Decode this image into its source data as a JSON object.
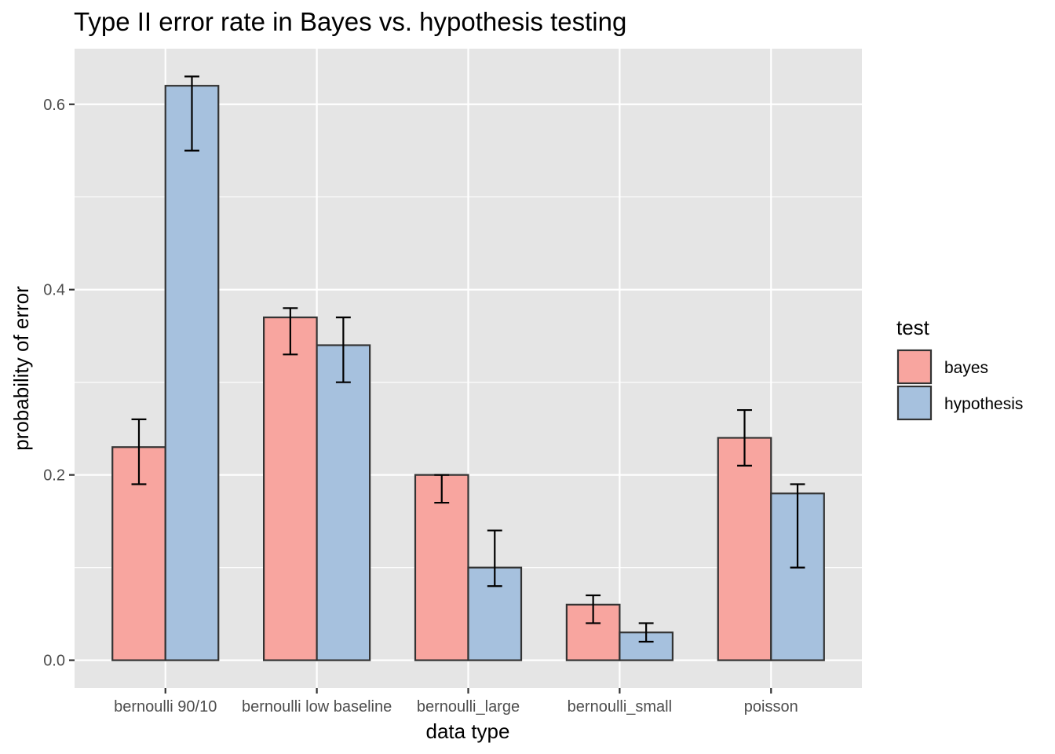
{
  "chart_data": {
    "type": "bar",
    "title": "Type II error rate in Bayes vs. hypothesis testing",
    "xlabel": "data type",
    "ylabel": "probability of error",
    "categories": [
      "bernoulli 90/10",
      "bernoulli low baseline",
      "bernoulli_large",
      "bernoulli_small",
      "poisson"
    ],
    "series": [
      {
        "name": "bayes",
        "color": "#f8a59f",
        "values": [
          0.23,
          0.37,
          0.2,
          0.06,
          0.24
        ],
        "error_low": [
          0.19,
          0.33,
          0.17,
          0.04,
          0.21
        ],
        "error_high": [
          0.26,
          0.38,
          0.2,
          0.07,
          0.27
        ]
      },
      {
        "name": "hypothesis",
        "color": "#a6c1de",
        "values": [
          0.62,
          0.34,
          0.1,
          0.03,
          0.18
        ],
        "error_low": [
          0.55,
          0.3,
          0.08,
          0.02,
          0.1
        ],
        "error_high": [
          0.63,
          0.37,
          0.14,
          0.04,
          0.19
        ]
      }
    ],
    "ylim": [
      -0.03,
      0.66
    ],
    "yticks": [
      0.0,
      0.2,
      0.4,
      0.6
    ],
    "ytick_labels": [
      "0.0",
      "0.2",
      "0.4",
      "0.6"
    ],
    "legend": {
      "title": "test",
      "position": "right"
    },
    "grid": true,
    "panel_color": "#e5e5e5",
    "grid_color": "#ffffff"
  }
}
